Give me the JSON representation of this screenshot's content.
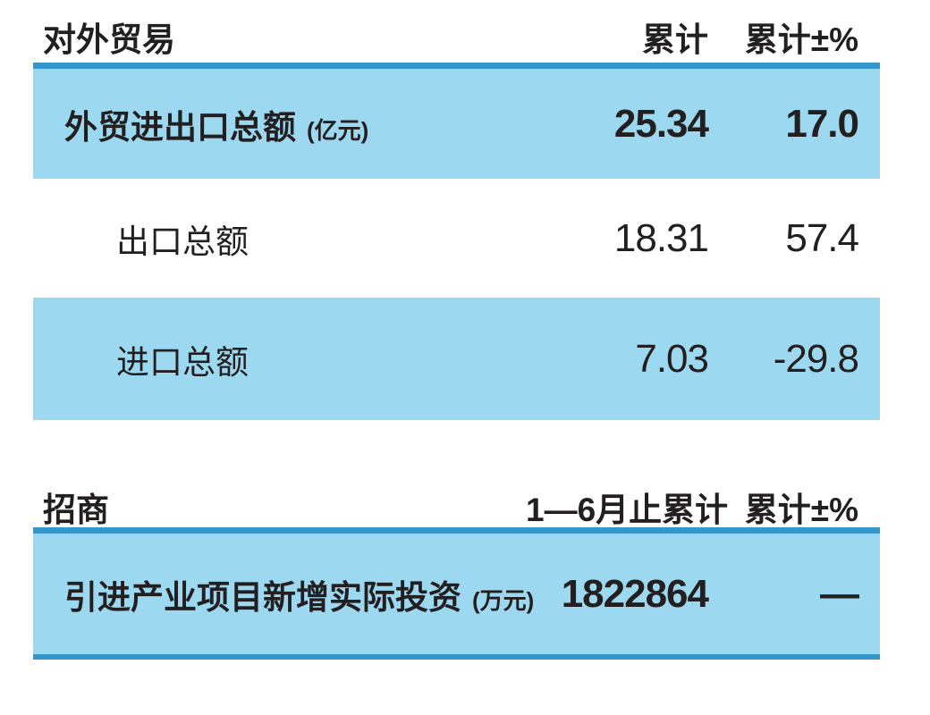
{
  "page": {
    "background": "#ffffff",
    "text_color": "#231f20",
    "accent_line_color": "#3497cb",
    "highlight_row_color": "#9cd9f1"
  },
  "sections": [
    {
      "title": "对外贸易",
      "columns": [
        "累计",
        "累计±%"
      ],
      "rows": [
        {
          "label": "外贸进出口总额",
          "unit": "(亿元)",
          "cumulative": "25.34",
          "change_pct": "17.0"
        },
        {
          "label": "出口总额",
          "unit": "",
          "cumulative": "18.31",
          "change_pct": "57.4"
        },
        {
          "label": "进口总额",
          "unit": "",
          "cumulative": "7.03",
          "change_pct": "-29.8"
        }
      ]
    },
    {
      "title": "招商",
      "columns": [
        "1—6月止累计",
        "累计±%"
      ],
      "rows": [
        {
          "label": "引进产业项目新增实际投资",
          "unit": "(万元)",
          "cumulative": "1822864",
          "change_pct": "—"
        }
      ]
    }
  ]
}
